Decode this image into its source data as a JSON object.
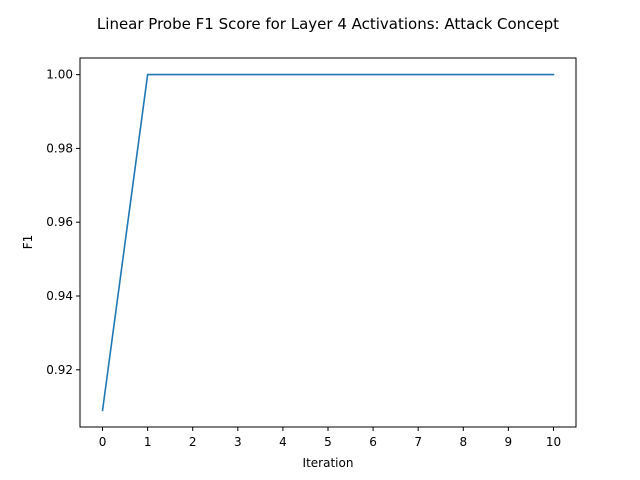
{
  "chart_data": {
    "type": "line",
    "title": "Linear Probe F1 Score for Layer 4 Activations: Attack Concept",
    "xlabel": "Iteration",
    "ylabel": "F1",
    "x": [
      0,
      1,
      2,
      3,
      4,
      5,
      6,
      7,
      8,
      9,
      10
    ],
    "series": [
      {
        "values": [
          0.909,
          1.0,
          1.0,
          1.0,
          1.0,
          1.0,
          1.0,
          1.0,
          1.0,
          1.0,
          1.0
        ],
        "color": "#1f77b4"
      }
    ],
    "xlim": [
      -0.5,
      10.5
    ],
    "ylim": [
      0.9045,
      1.0045
    ],
    "xticks": [
      0,
      1,
      2,
      3,
      4,
      5,
      6,
      7,
      8,
      9,
      10
    ],
    "yticks": [
      0.92,
      0.94,
      0.96,
      0.98,
      1.0
    ],
    "ytick_labels": [
      "0.92",
      "0.94",
      "0.96",
      "0.98",
      "1.00"
    ],
    "grid": false,
    "legend": "none"
  }
}
